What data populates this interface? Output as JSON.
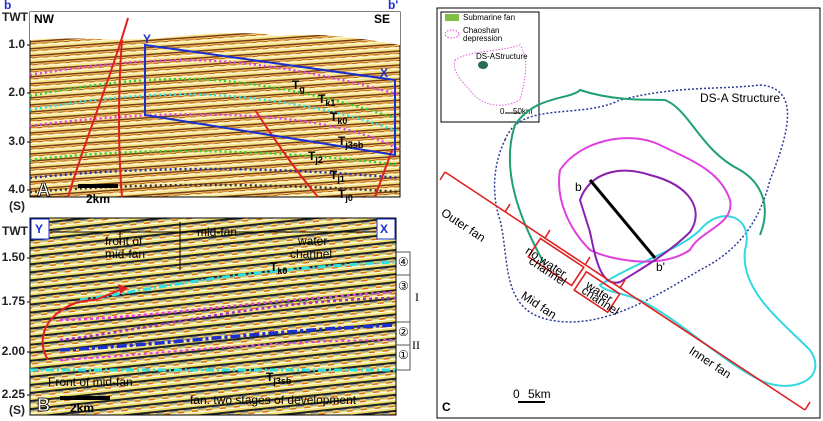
{
  "panel_a": {
    "label": "A",
    "left_mark": "b",
    "right_mark": "b'",
    "axis_title": "TWT",
    "left_dir": "NW",
    "right_dir": "SE",
    "yticks": [
      "1.0",
      "2.0",
      "3.0",
      "4.0"
    ],
    "unit": "(S)",
    "scale": "2km",
    "corner_left": "Y",
    "corner_right": "X",
    "horizons": [
      {
        "base": "T",
        "sub": "g"
      },
      {
        "base": "T",
        "sub": "k1"
      },
      {
        "base": "T",
        "sub": "k0"
      },
      {
        "base": "T",
        "sub": "j3sb"
      },
      {
        "base": "T",
        "sub": "j2"
      },
      {
        "base": "T",
        "sub": "j1"
      },
      {
        "base": "T",
        "sub": "j0"
      }
    ]
  },
  "panel_b": {
    "label": "B",
    "axis_title": "TWT",
    "yticks": [
      "1.50",
      "1.75",
      "2.00",
      "2.25"
    ],
    "unit": "(S)",
    "corner_left": "Y",
    "corner_right": "X",
    "zone_front": [
      "front of",
      "mid-fan"
    ],
    "zone_mid": "mid-fan",
    "zone_channel": [
      "water",
      "channel"
    ],
    "front_bottom": "Front of mid-fan",
    "stages": "fan: two stages of development",
    "scale": "2km",
    "horizons": [
      {
        "base": "T",
        "sub": "k0"
      },
      {
        "base": "T",
        "sub": "j3sb"
      }
    ],
    "units": [
      "④",
      "③",
      "②",
      "①"
    ],
    "stage_names": [
      "I",
      "II"
    ]
  },
  "panel_c": {
    "label": "C",
    "inset_legend": [
      "Submarine fan",
      "Chaoshan",
      "depression"
    ],
    "inset_structure": "DS-AStructure",
    "inset_scale": "50km",
    "inset_zero": "0",
    "structure": "DS-A Structure",
    "section_start": "b",
    "section_end": "b'",
    "outer": "Outer fan",
    "mid": "Mid fan",
    "inner": "Inner fan",
    "no_channel": [
      "no water",
      "channel"
    ],
    "channel": [
      "water",
      "channel"
    ],
    "scale_zero": "0",
    "scale": "5km"
  }
}
